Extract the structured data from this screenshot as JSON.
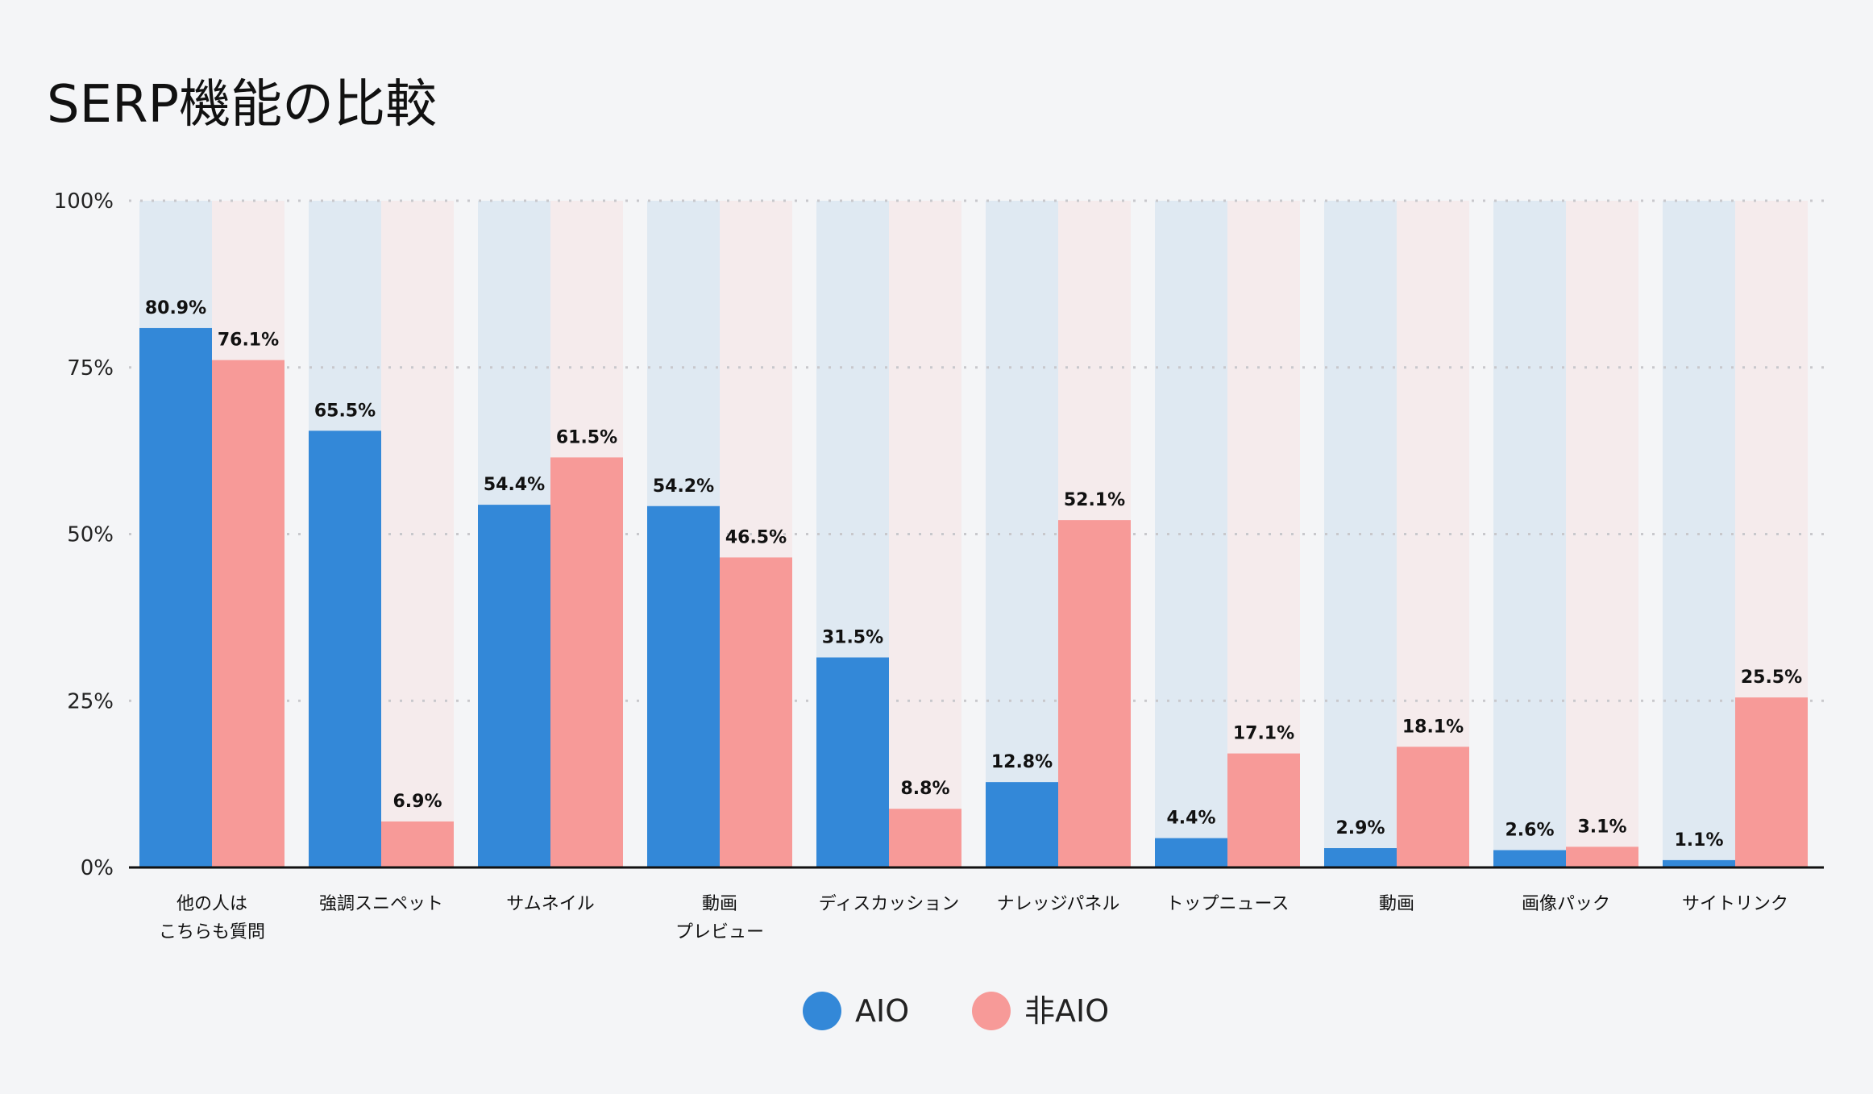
{
  "chart_data": {
    "type": "bar",
    "title": "SERP機能の比較",
    "xlabel": "",
    "ylabel": "",
    "ylim": [
      0,
      100
    ],
    "yticks": [
      "0%",
      "25%",
      "50%",
      "75%",
      "100%"
    ],
    "grid": true,
    "legend_position": "bottom",
    "categories": [
      [
        "他の人は",
        "こちらも質問"
      ],
      [
        "強調スニペット"
      ],
      [
        "サムネイル"
      ],
      [
        "動画",
        "プレビュー"
      ],
      [
        "ディスカッション"
      ],
      [
        "ナレッジパネル"
      ],
      [
        "トップニュース"
      ],
      [
        "動画"
      ],
      [
        "画像パック"
      ],
      [
        "サイトリンク"
      ]
    ],
    "series": [
      {
        "name": "AIO",
        "color": "#3388d8",
        "background": "#dfe9f2",
        "values": [
          80.9,
          65.5,
          54.4,
          54.2,
          31.5,
          12.8,
          4.4,
          2.9,
          2.6,
          1.1
        ],
        "labels": [
          "80.9%",
          "65.5%",
          "54.4%",
          "54.2%",
          "31.5%",
          "12.8%",
          "4.4%",
          "2.9%",
          "2.6%",
          "1.1%"
        ]
      },
      {
        "name": "非AIO",
        "color": "#f79a98",
        "background": "#f5ebec",
        "values": [
          76.1,
          6.9,
          61.5,
          46.5,
          8.8,
          52.1,
          17.1,
          18.1,
          3.1,
          25.5
        ],
        "labels": [
          "76.1%",
          "6.9%",
          "61.5%",
          "46.5%",
          "8.8%",
          "52.1%",
          "17.1%",
          "18.1%",
          "3.1%",
          "25.5%"
        ]
      }
    ]
  }
}
